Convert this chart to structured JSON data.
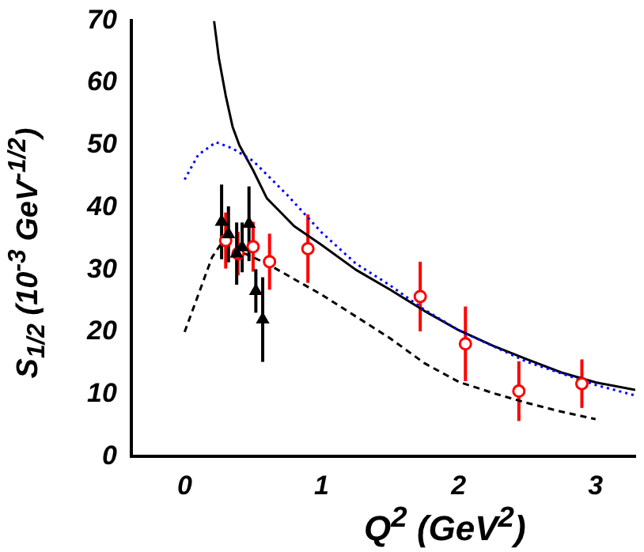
{
  "chart_data": {
    "type": "scatter",
    "xlabel": "Q$^{2}$ (GeV$^{2}$)",
    "ylabel": "S$_{1/2}$ (10$^{-3}$ GeV$^{-1/2}$)",
    "xlim": [
      -0.39,
      3.29
    ],
    "ylim": [
      0,
      70
    ],
    "xticks": [
      0,
      1,
      2,
      3
    ],
    "yticks": [
      0,
      10,
      20,
      30,
      40,
      50,
      60,
      70
    ],
    "grid": false,
    "legend": false,
    "series": [
      {
        "type": "line",
        "color": "#000000",
        "line_style": "solid",
        "marker": "none",
        "x": [
          0.215,
          0.25,
          0.3,
          0.35,
          0.4,
          0.5,
          0.6,
          0.8,
          1.0,
          1.25,
          1.5,
          1.75,
          2.0,
          2.25,
          2.5,
          2.75,
          3.0,
          3.29
        ],
        "values": [
          70,
          64,
          58,
          53,
          50,
          46,
          41.5,
          37,
          34,
          30,
          26.8,
          23.4,
          20.3,
          17.8,
          15.6,
          13.5,
          11.9,
          10.7
        ]
      },
      {
        "type": "line",
        "color": "#0000ff",
        "line_style": "dotted",
        "marker": "none",
        "x": [
          0,
          0.1,
          0.23,
          0.35,
          0.5,
          0.75,
          1.0,
          1.25,
          1.5,
          1.75,
          2.0,
          2.5,
          3.0,
          3.29
        ],
        "values": [
          44.5,
          48.5,
          50.5,
          49.5,
          47.5,
          42,
          36,
          31,
          27.5,
          23.6,
          20.3,
          15.2,
          11.5,
          9.8
        ]
      },
      {
        "type": "line",
        "color": "#000000",
        "line_style": "dashed",
        "marker": "none",
        "x": [
          0,
          0.1,
          0.2,
          0.27,
          0.4,
          0.6,
          0.8,
          1.0,
          1.25,
          1.5,
          1.75,
          2.0,
          2.25,
          2.5,
          2.75,
          3.0
        ],
        "values": [
          20,
          26,
          32,
          34.3,
          33,
          31,
          28.5,
          26,
          22.5,
          19,
          15,
          12,
          10.2,
          8.6,
          7.2,
          6
        ]
      },
      {
        "type": "scatter",
        "color": "#ff0000",
        "marker": "circle",
        "x": [
          0.3,
          0.39,
          0.5,
          0.62,
          0.9,
          1.72,
          2.05,
          2.44,
          2.9
        ],
        "values": [
          34.7,
          32.6,
          33.7,
          31.3,
          33.4,
          25.7,
          18.1,
          10.5,
          11.7
        ],
        "errors": [
          4.5,
          3.5,
          4,
          4.5,
          5.5,
          5.6,
          6,
          4.8,
          3.9
        ]
      },
      {
        "type": "scatter",
        "color": "#000000",
        "marker": "triangle",
        "x": [
          0.27,
          0.32,
          0.38,
          0.42,
          0.47,
          0.52,
          0.57
        ],
        "values": [
          37.7,
          35.7,
          32.6,
          33.6,
          37.4,
          26.6,
          22
        ],
        "errors": [
          6,
          4.5,
          5,
          4,
          6,
          3.5,
          6.8
        ]
      }
    ]
  }
}
